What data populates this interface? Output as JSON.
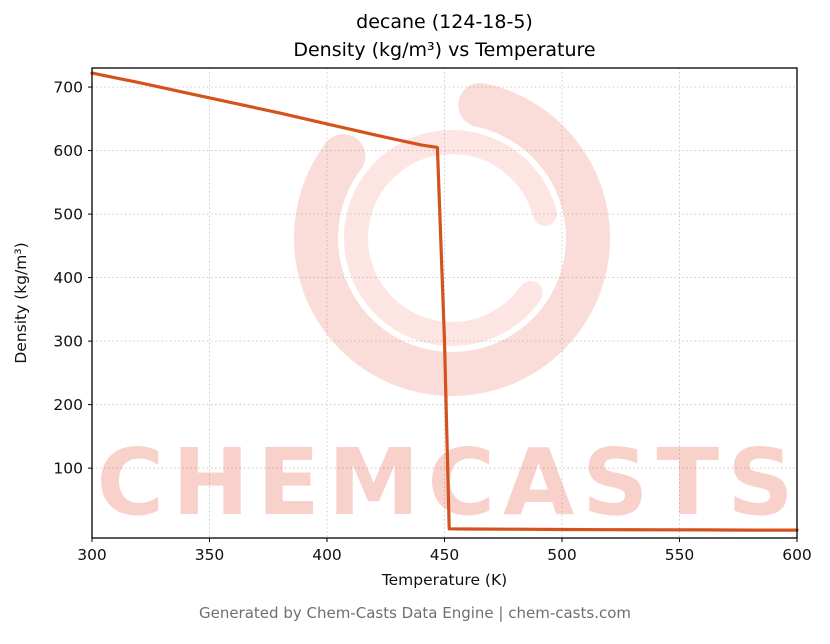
{
  "page": {
    "title_line1": "decane (124-18-5)",
    "title_line2": "Density (kg/m³) vs Temperature",
    "footer": "Generated by Chem-Casts Data Engine | chem-casts.com",
    "watermark_text": "CHEMCASTS",
    "watermark_color": "#e8513a"
  },
  "chart_data": {
    "type": "line",
    "title": "decane (124-18-5)\nDensity (kg/m³) vs Temperature",
    "xlabel": "Temperature (K)",
    "ylabel": "Density (kg/m³)",
    "xlim": [
      300,
      600
    ],
    "ylim": [
      -10,
      730
    ],
    "xticks": [
      300,
      350,
      400,
      450,
      500,
      550,
      600
    ],
    "yticks": [
      100,
      200,
      300,
      400,
      500,
      600,
      700
    ],
    "grid": true,
    "grid_style": "dotted",
    "legend": "none",
    "line_color": "#d4531b",
    "series": [
      {
        "id": "density",
        "name": "Density (kg/m³)",
        "color": "#d4531b",
        "x": [
          300,
          320,
          340,
          360,
          380,
          400,
          420,
          440,
          447,
          450,
          452,
          460,
          480,
          500,
          520,
          540,
          560,
          580,
          600
        ],
        "y": [
          722,
          707,
          691,
          675,
          659,
          642,
          625,
          609,
          605,
          300,
          4.5,
          4.2,
          3.8,
          3.4,
          3.1,
          2.9,
          2.7,
          2.5,
          2.4
        ]
      }
    ]
  }
}
